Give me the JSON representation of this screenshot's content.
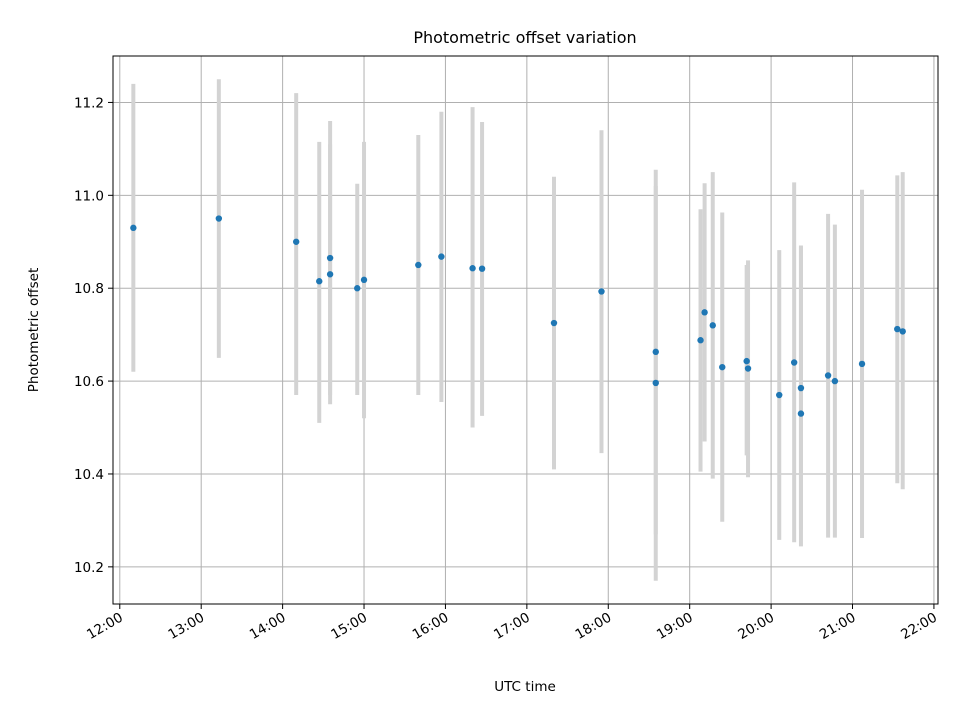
{
  "chart_data": {
    "type": "scatter",
    "title": "Photometric offset variation",
    "xlabel": "UTC time",
    "ylabel": "Photometric offset",
    "x_ticks": [
      "12:00",
      "13:00",
      "14:00",
      "15:00",
      "16:00",
      "17:00",
      "18:00",
      "19:00",
      "20:00",
      "21:00",
      "22:00"
    ],
    "y_ticks": [
      "10.2",
      "10.4",
      "10.6",
      "10.8",
      "11.0",
      "11.2"
    ],
    "xlim": [
      "11:55",
      "22:03"
    ],
    "ylim": [
      10.12,
      11.3
    ],
    "grid": true,
    "points": [
      {
        "x": "12:10",
        "y": 10.93,
        "ylow": 10.62,
        "yhigh": 11.24
      },
      {
        "x": "13:13",
        "y": 10.95,
        "ylow": 10.65,
        "yhigh": 11.25
      },
      {
        "x": "14:10",
        "y": 10.9,
        "ylow": 10.57,
        "yhigh": 11.22
      },
      {
        "x": "14:27",
        "y": 10.815,
        "ylow": 10.51,
        "yhigh": 11.115
      },
      {
        "x": "14:35",
        "y": 10.865,
        "ylow": 10.57,
        "yhigh": 11.16
      },
      {
        "x": "14:35",
        "y": 10.83,
        "ylow": 10.55,
        "yhigh": 11.11
      },
      {
        "x": "14:55",
        "y": 10.8,
        "ylow": 10.57,
        "yhigh": 11.025
      },
      {
        "x": "15:00",
        "y": 10.818,
        "ylow": 10.52,
        "yhigh": 11.115
      },
      {
        "x": "15:40",
        "y": 10.85,
        "ylow": 10.57,
        "yhigh": 11.13
      },
      {
        "x": "15:57",
        "y": 10.868,
        "ylow": 10.555,
        "yhigh": 11.18
      },
      {
        "x": "16:20",
        "y": 10.843,
        "ylow": 10.5,
        "yhigh": 11.19
      },
      {
        "x": "16:27",
        "y": 10.842,
        "ylow": 10.525,
        "yhigh": 11.158
      },
      {
        "x": "17:20",
        "y": 10.725,
        "ylow": 10.41,
        "yhigh": 11.04
      },
      {
        "x": "17:55",
        "y": 10.793,
        "ylow": 10.445,
        "yhigh": 11.14
      },
      {
        "x": "18:35",
        "y": 10.663,
        "ylow": 10.27,
        "yhigh": 11.055
      },
      {
        "x": "18:35",
        "y": 10.596,
        "ylow": 10.17,
        "yhigh": 11.02
      },
      {
        "x": "19:08",
        "y": 10.688,
        "ylow": 10.405,
        "yhigh": 10.97
      },
      {
        "x": "19:11",
        "y": 10.748,
        "ylow": 10.47,
        "yhigh": 11.026
      },
      {
        "x": "19:17",
        "y": 10.72,
        "ylow": 10.39,
        "yhigh": 11.05
      },
      {
        "x": "19:24",
        "y": 10.63,
        "ylow": 10.297,
        "yhigh": 10.963
      },
      {
        "x": "19:42",
        "y": 10.643,
        "ylow": 10.44,
        "yhigh": 10.85
      },
      {
        "x": "19:43",
        "y": 10.627,
        "ylow": 10.393,
        "yhigh": 10.86
      },
      {
        "x": "20:06",
        "y": 10.57,
        "ylow": 10.258,
        "yhigh": 10.882
      },
      {
        "x": "20:17",
        "y": 10.64,
        "ylow": 10.253,
        "yhigh": 11.028
      },
      {
        "x": "20:22",
        "y": 10.585,
        "ylow": 10.28,
        "yhigh": 10.892
      },
      {
        "x": "20:22",
        "y": 10.53,
        "ylow": 10.244,
        "yhigh": 10.89
      },
      {
        "x": "20:42",
        "y": 10.612,
        "ylow": 10.263,
        "yhigh": 10.96
      },
      {
        "x": "20:47",
        "y": 10.6,
        "ylow": 10.263,
        "yhigh": 10.937
      },
      {
        "x": "21:07",
        "y": 10.637,
        "ylow": 10.262,
        "yhigh": 11.012
      },
      {
        "x": "21:33",
        "y": 10.712,
        "ylow": 10.38,
        "yhigh": 11.043
      },
      {
        "x": "21:37",
        "y": 10.707,
        "ylow": 10.367,
        "yhigh": 11.05
      }
    ],
    "point_color": "#1f77b4",
    "errorbar_color": "#d3d3d3"
  }
}
